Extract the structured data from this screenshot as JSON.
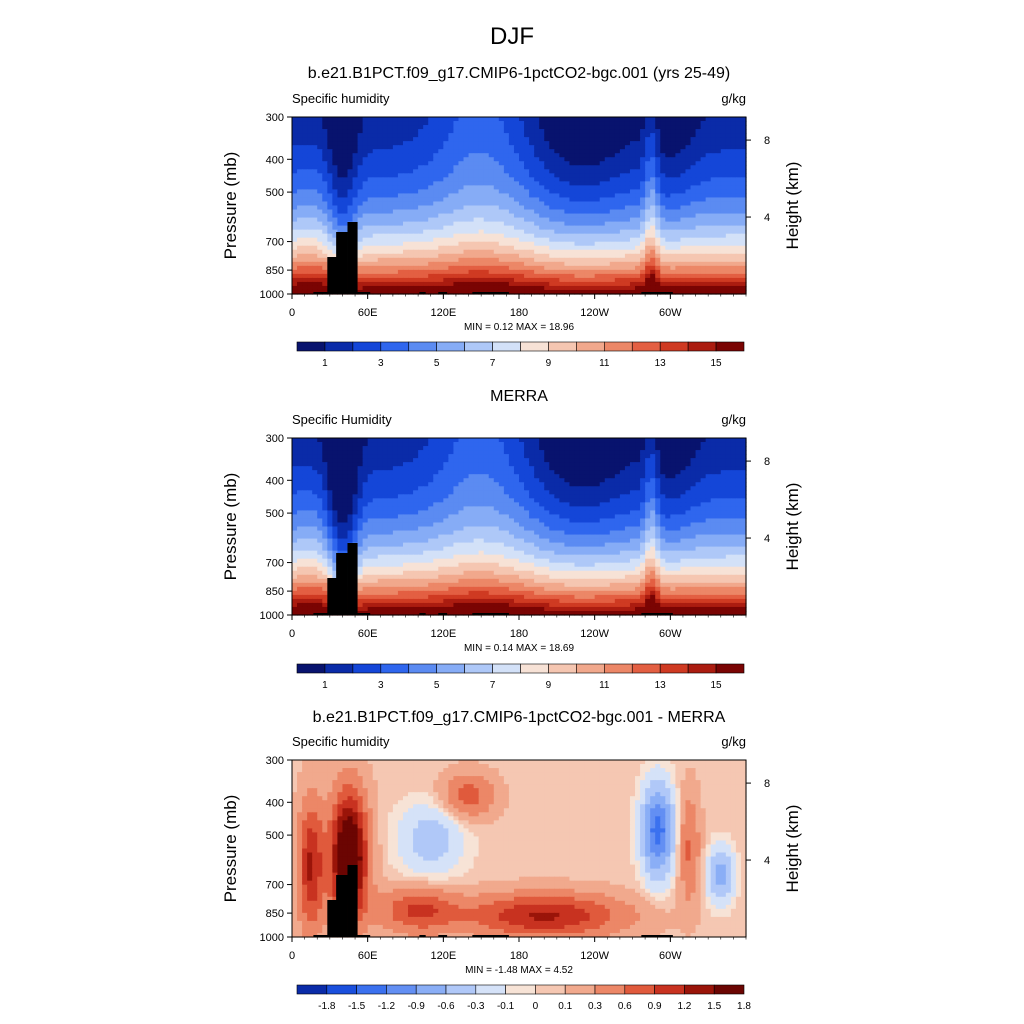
{
  "page": {
    "title": "DJF"
  },
  "colors": {
    "abs_scale": [
      "#08136e",
      "#0a2ba8",
      "#1446d8",
      "#2f66ee",
      "#5b8bf2",
      "#86acf6",
      "#aec8f8",
      "#d3e1f8",
      "#f7e2d6",
      "#f5c6b1",
      "#f1a88c",
      "#ec8767",
      "#e35f42",
      "#cf3a22",
      "#ab1c10",
      "#7a0403"
    ],
    "diff_scale": [
      "#0a2ba8",
      "#1a4fdd",
      "#3b71ef",
      "#638ff3",
      "#8aaef6",
      "#b0c8f8",
      "#d5e2f8",
      "#f7e3d6",
      "#f5c7b2",
      "#f1a98d",
      "#ec8767",
      "#e05a3c",
      "#c83220",
      "#9a1409",
      "#6b0502"
    ],
    "land": "#000000"
  },
  "chart_data": [
    {
      "type": "heatmap",
      "title": "b.e21.B1PCT.f09_g17.CMIP6-1pctCO2-bgc.001 (yrs 25-49)",
      "left_label": "Specific humidity",
      "right_label": "g/kg",
      "ylabel": "Pressure (mb)",
      "y2label": "Height (km)",
      "xticks": [
        "0",
        "60E",
        "120E",
        "180",
        "120W",
        "60W"
      ],
      "yticks": [
        "300",
        "400",
        "500",
        "700",
        "850",
        "1000"
      ],
      "y2ticks": [
        "8",
        "4"
      ],
      "minmax": "MIN =   0.12  MAX =  18.96",
      "colorbar_labels": [
        "1",
        "3",
        "5",
        "7",
        "9",
        "11",
        "13",
        "15"
      ],
      "min": 0.12,
      "max": 18.96,
      "y_range_mb": [
        1000,
        300
      ],
      "x_range_deg": [
        0,
        360
      ]
    },
    {
      "type": "heatmap",
      "title": "MERRA",
      "left_label": "Specific Humidity",
      "right_label": "g/kg",
      "ylabel": "Pressure (mb)",
      "y2label": "Height (km)",
      "xticks": [
        "0",
        "60E",
        "120E",
        "180",
        "120W",
        "60W"
      ],
      "yticks": [
        "300",
        "400",
        "500",
        "700",
        "850",
        "1000"
      ],
      "y2ticks": [
        "8",
        "4"
      ],
      "minmax": "MIN =   0.14  MAX =  18.69",
      "colorbar_labels": [
        "1",
        "3",
        "5",
        "7",
        "9",
        "11",
        "13",
        "15"
      ],
      "min": 0.14,
      "max": 18.69,
      "y_range_mb": [
        1000,
        300
      ],
      "x_range_deg": [
        0,
        360
      ]
    },
    {
      "type": "heatmap",
      "title": "b.e21.B1PCT.f09_g17.CMIP6-1pctCO2-bgc.001 - MERRA",
      "left_label": "Specific humidity",
      "right_label": "g/kg",
      "ylabel": "Pressure (mb)",
      "y2label": "Height (km)",
      "xticks": [
        "0",
        "60E",
        "120E",
        "180",
        "120W",
        "60W"
      ],
      "yticks": [
        "300",
        "400",
        "500",
        "700",
        "850",
        "1000"
      ],
      "y2ticks": [
        "8",
        "4"
      ],
      "minmax": "MIN =  -1.48  MAX =   4.52",
      "colorbar_labels": [
        "-1.8",
        "-1.5",
        "-1.2",
        "-0.9",
        "-0.6",
        "-0.3",
        "-0.1",
        "0",
        "0.1",
        "0.3",
        "0.6",
        "0.9",
        "1.2",
        "1.5",
        "1.8"
      ],
      "min": -1.48,
      "max": 4.52,
      "y_range_mb": [
        1000,
        300
      ],
      "x_range_deg": [
        0,
        360
      ]
    }
  ]
}
